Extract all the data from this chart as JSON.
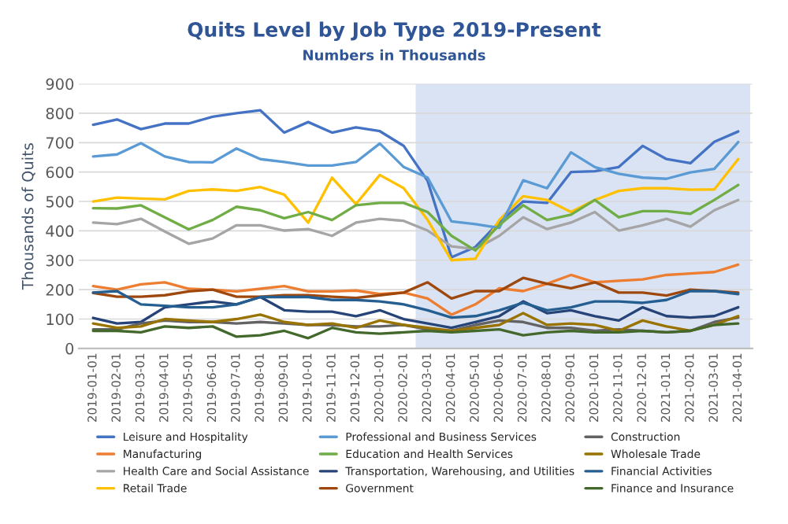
{
  "chart_data": {
    "type": "line",
    "title": "Quits Level by Job Type 2019-Present",
    "subtitle": "Numbers in Thousands",
    "ylabel": "Thousands of Quits",
    "categories": [
      "2019-01-01",
      "2019-02-01",
      "2019-03-01",
      "2019-04-01",
      "2019-05-01",
      "2019-06-01",
      "2019-07-01",
      "2019-08-01",
      "2019-09-01",
      "2019-10-01",
      "2019-11-01",
      "2019-12-01",
      "2020-01-01",
      "2020-02-01",
      "2020-03-01",
      "2020-04-01",
      "2020-05-01",
      "2020-06-01",
      "2020-07-01",
      "2020-08-01",
      "2020-09-01",
      "2020-10-01",
      "2020-11-01",
      "2020-12-01",
      "2021-01-01",
      "2021-02-01",
      "2021-03-01",
      "2021-04-01"
    ],
    "series": [
      {
        "name": "Leisure and Hospitality",
        "color": "#4472c4",
        "values": [
          761,
          779,
          746,
          765,
          765,
          788,
          800,
          810,
          734,
          770,
          734,
          752,
          739,
          689,
          570,
          310,
          345,
          430,
          500,
          495,
          600,
          603,
          617,
          689,
          644,
          630,
          703,
          738
        ]
      },
      {
        "name": "Manufacturing",
        "color": "#ed7d31",
        "values": [
          212,
          200,
          218,
          225,
          203,
          200,
          194,
          203,
          212,
          194,
          194,
          197,
          185,
          190,
          170,
          115,
          150,
          205,
          195,
          220,
          250,
          225,
          230,
          235,
          250,
          255,
          260,
          285
        ]
      },
      {
        "name": "Health Care and Social Assistance",
        "color": "#a5a5a5",
        "values": [
          428,
          423,
          441,
          398,
          356,
          374,
          419,
          419,
          401,
          406,
          383,
          428,
          441,
          434,
          401,
          347,
          338,
          383,
          446,
          406,
          428,
          464,
          401,
          419,
          441,
          414,
          470,
          505
        ]
      },
      {
        "name": "Retail Trade",
        "color": "#ffc000",
        "values": [
          500,
          513,
          510,
          507,
          536,
          541,
          536,
          549,
          523,
          428,
          581,
          491,
          590,
          545,
          437,
          300,
          305,
          437,
          518,
          505,
          464,
          505,
          536,
          545,
          545,
          540,
          541,
          644
        ]
      },
      {
        "name": "Professional and Business Services",
        "color": "#5b9bd5",
        "values": [
          653,
          660,
          698,
          653,
          634,
          633,
          680,
          644,
          634,
          622,
          622,
          634,
          697,
          617,
          581,
          432,
          423,
          410,
          572,
          545,
          667,
          617,
          594,
          581,
          577,
          599,
          611,
          702
        ]
      },
      {
        "name": "Education and Health Services",
        "color": "#70ad47",
        "values": [
          477,
          476,
          487,
          446,
          405,
          437,
          482,
          470,
          443,
          464,
          437,
          487,
          495,
          495,
          464,
          383,
          333,
          420,
          487,
          437,
          455,
          505,
          446,
          467,
          467,
          458,
          505,
          556
        ]
      },
      {
        "name": "Transportation, Warehousing, and Utilities",
        "color": "#264478",
        "values": [
          104,
          85,
          90,
          140,
          150,
          160,
          150,
          175,
          130,
          125,
          125,
          110,
          130,
          100,
          85,
          70,
          90,
          110,
          160,
          120,
          130,
          110,
          95,
          140,
          110,
          105,
          110,
          140
        ]
      },
      {
        "name": "Government",
        "color": "#9e480e",
        "values": [
          189,
          176,
          176,
          181,
          194,
          200,
          176,
          176,
          181,
          181,
          176,
          172,
          181,
          190,
          225,
          170,
          195,
          195,
          240,
          220,
          205,
          225,
          190,
          190,
          180,
          200,
          195,
          190
        ]
      },
      {
        "name": "Construction",
        "color": "#636363",
        "values": [
          65,
          65,
          85,
          95,
          90,
          90,
          85,
          90,
          85,
          80,
          80,
          75,
          75,
          80,
          65,
          60,
          80,
          95,
          90,
          70,
          70,
          60,
          65,
          60,
          55,
          60,
          90,
          105
        ]
      },
      {
        "name": "Wholesale Trade",
        "color": "#997300",
        "values": [
          85,
          70,
          75,
          100,
          95,
          90,
          100,
          115,
          90,
          80,
          85,
          70,
          95,
          80,
          70,
          60,
          70,
          80,
          120,
          80,
          85,
          80,
          60,
          95,
          75,
          60,
          80,
          110
        ]
      },
      {
        "name": "Financial Activities",
        "color": "#255e91",
        "values": [
          190,
          195,
          150,
          145,
          140,
          140,
          150,
          175,
          175,
          175,
          165,
          165,
          160,
          150,
          130,
          105,
          110,
          130,
          155,
          130,
          140,
          160,
          160,
          155,
          165,
          195,
          195,
          185
        ]
      },
      {
        "name": "Finance and Insurance",
        "color": "#43682b",
        "values": [
          60,
          60,
          55,
          75,
          70,
          75,
          40,
          45,
          60,
          35,
          70,
          55,
          50,
          55,
          60,
          55,
          60,
          65,
          45,
          55,
          60,
          55,
          55,
          60,
          55,
          60,
          80,
          85
        ]
      }
    ],
    "ylim": [
      0,
      900
    ],
    "yticks": [
      0,
      100,
      200,
      300,
      400,
      500,
      600,
      700,
      800,
      900
    ],
    "grid": "y",
    "legend": "bottom",
    "marker": "none",
    "line_style": "solid",
    "bands": [
      {
        "axis": "x",
        "from": "2020-03-01",
        "to": "2021-04-01",
        "color": "#dae3f3"
      }
    ]
  }
}
